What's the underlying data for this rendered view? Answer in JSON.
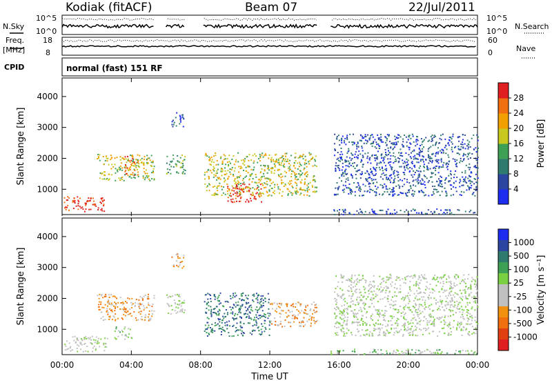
{
  "header": {
    "station": "Kodiak (fitACF)",
    "beam": "Beam 07",
    "date": "22/Jul/2011"
  },
  "strip_labels": {
    "nsky": "N.Sky",
    "nsearch": "N.Search",
    "freq_top": "Freq.",
    "freq_unit": "[MHz]",
    "nave": "Nave",
    "cpid": "CPID",
    "program": "normal (fast) 151 RF"
  },
  "strip_ticks": {
    "noise_left": [
      "10^5",
      "10^0"
    ],
    "noise_right": [
      "10^5",
      "10^0"
    ],
    "freq_left": [
      "18",
      "8"
    ],
    "nave_right": [
      "60",
      "0"
    ]
  },
  "chart_data": [
    {
      "type": "heatmap",
      "panel": "power",
      "ylabel": "Slant Range [km]",
      "ylim": [
        180,
        4600
      ],
      "yticks": [
        "1000",
        "2000",
        "3000",
        "4000"
      ],
      "xlim_hours": [
        0,
        24
      ],
      "colorbar_label": "Power [dB]",
      "colorbar_ticks": [
        "4",
        "8",
        "12",
        "16",
        "20",
        "24",
        "28"
      ],
      "colors": [
        "#1c2df0",
        "#2b45a0",
        "#2f7a6e",
        "#3ea055",
        "#c8c820",
        "#f2a000",
        "#f07010",
        "#e02020"
      ],
      "regions": [
        {
          "t0": 0.1,
          "t1": 2.5,
          "r0": 300,
          "r1": 780,
          "level": 7
        },
        {
          "t0": 2.0,
          "t1": 5.3,
          "r0": 1300,
          "r1": 2150,
          "level": 4
        },
        {
          "t0": 3.6,
          "t1": 4.4,
          "r0": 1450,
          "r1": 2100,
          "level": 6
        },
        {
          "t0": 6.0,
          "t1": 7.1,
          "r0": 1500,
          "r1": 2150,
          "level": 3
        },
        {
          "t0": 6.3,
          "t1": 7.0,
          "r0": 3000,
          "r1": 3500,
          "level": 1
        },
        {
          "t0": 8.2,
          "t1": 14.7,
          "r0": 800,
          "r1": 2200,
          "level": 4
        },
        {
          "t0": 9.5,
          "t1": 11.5,
          "r0": 600,
          "r1": 1200,
          "level": 7
        },
        {
          "t0": 15.7,
          "t1": 24.0,
          "r0": 800,
          "r1": 2800,
          "level": 1
        },
        {
          "t0": 15.5,
          "t1": 24.0,
          "r0": 200,
          "r1": 380,
          "level": 1
        }
      ]
    },
    {
      "type": "heatmap",
      "panel": "velocity",
      "ylabel": "Slant Range [km]",
      "xlabel": "Time UT",
      "ylim": [
        180,
        4600
      ],
      "yticks": [
        "1000",
        "2000",
        "3000",
        "4000"
      ],
      "xlim_hours": [
        0,
        24
      ],
      "xticks": [
        "00:00",
        "04:00",
        "08:00",
        "12:00",
        "16:00",
        "20:00",
        "00:00"
      ],
      "colorbar_label": "Velocity [m s⁻¹]",
      "colorbar_ticks": [
        "1000",
        "500",
        "100",
        "25",
        "-25",
        "-100",
        "-500",
        "-1000"
      ],
      "colors": [
        "#1c2df0",
        "#2b45a0",
        "#2f7a6e",
        "#3ea055",
        "#7ad040",
        "#c0c0c0",
        "#c0c0c0",
        "#f29010",
        "#f07010",
        "#e04010",
        "#e02020"
      ],
      "regions": [
        {
          "t0": 0.1,
          "t1": 2.6,
          "r0": 300,
          "r1": 800,
          "level": 5
        },
        {
          "t0": 2.0,
          "t1": 5.3,
          "r0": 1300,
          "r1": 2150,
          "level": 7
        },
        {
          "t0": 3.0,
          "t1": 4.0,
          "r0": 700,
          "r1": 1100,
          "level": 4
        },
        {
          "t0": 6.0,
          "t1": 7.1,
          "r0": 1500,
          "r1": 2150,
          "level": 5
        },
        {
          "t0": 6.3,
          "t1": 7.0,
          "r0": 3000,
          "r1": 3500,
          "level": 7
        },
        {
          "t0": 8.2,
          "t1": 12.0,
          "r0": 800,
          "r1": 2200,
          "level": 2
        },
        {
          "t0": 12.0,
          "t1": 14.7,
          "r0": 1100,
          "r1": 1900,
          "level": 7
        },
        {
          "t0": 15.7,
          "t1": 24.0,
          "r0": 800,
          "r1": 2800,
          "level": 5
        },
        {
          "t0": 15.5,
          "t1": 24.0,
          "r0": 200,
          "r1": 380,
          "level": 4
        }
      ]
    }
  ]
}
